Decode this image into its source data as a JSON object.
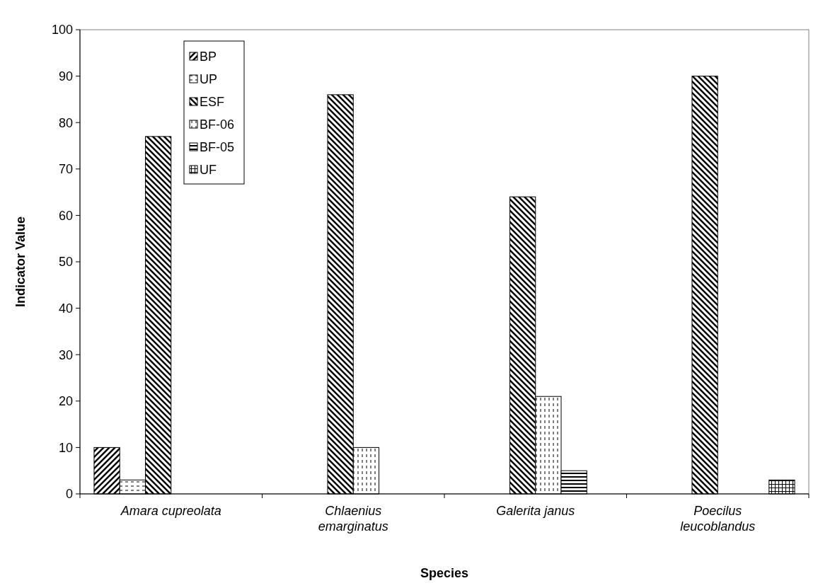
{
  "chart_data": {
    "type": "bar",
    "xlabel": "Species",
    "ylabel": "Indicator Value",
    "categories": [
      "Amara cupreolata",
      "Chlaenius emarginatus",
      "Galerita janus",
      "Poecilus leucoblandus"
    ],
    "series": [
      {
        "name": "BP",
        "color": "#000000",
        "values": [
          10,
          null,
          null,
          null
        ]
      },
      {
        "name": "UP",
        "color": "#000000",
        "values": [
          3,
          null,
          null,
          null
        ]
      },
      {
        "name": "ESF",
        "color": "#000000",
        "values": [
          77,
          86,
          64,
          90
        ]
      },
      {
        "name": "BF-06",
        "color": "#000000",
        "values": [
          null,
          10,
          21,
          null
        ]
      },
      {
        "name": "BF-05",
        "color": "#000000",
        "values": [
          null,
          null,
          5,
          null
        ]
      },
      {
        "name": "UF",
        "color": "#000000",
        "values": [
          null,
          null,
          null,
          3
        ]
      }
    ],
    "ylim": [
      0,
      100
    ],
    "yticks": [
      0,
      10,
      20,
      30,
      40,
      50,
      60,
      70,
      80,
      90,
      100
    ],
    "grid": false,
    "legend": "top left"
  }
}
